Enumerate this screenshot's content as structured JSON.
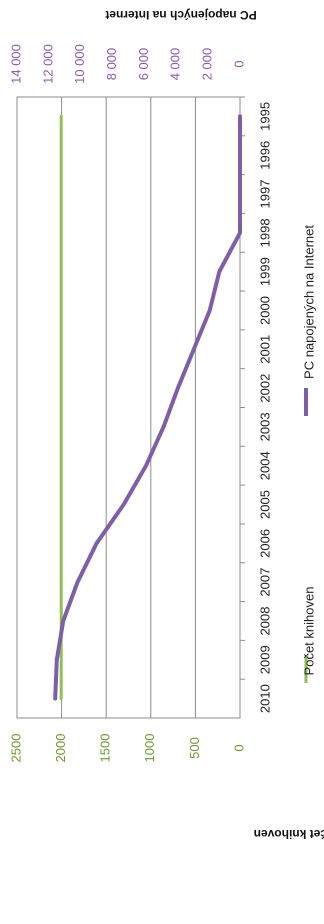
{
  "chart_data": {
    "type": "line",
    "orientation": "rotated 90 degrees clockwise",
    "categories": [
      "1995",
      "1996",
      "1997",
      "1998",
      "1999",
      "2000",
      "2001",
      "2002",
      "2003",
      "2004",
      "2005",
      "2006",
      "2007",
      "2008",
      "2009",
      "2010"
    ],
    "series": [
      {
        "name": "Počet knihoven",
        "axis": "left",
        "color": "#92c050",
        "values": [
          2005,
          2005,
          2005,
          2005,
          2005,
          2005,
          2005,
          2005,
          2005,
          2005,
          2005,
          2005,
          2005,
          2005,
          2005,
          2005
        ]
      },
      {
        "name": "PC napojených na Internet",
        "axis": "right",
        "color": "#7d5fa8",
        "values": [
          0,
          0,
          0,
          0,
          1300,
          1900,
          2900,
          3900,
          4800,
          5900,
          7300,
          9000,
          10200,
          11100,
          11500,
          11600
        ]
      }
    ],
    "left_axis": {
      "label": "Počet knihoven",
      "ylim": [
        0,
        2500
      ],
      "ticks": [
        "0",
        "500",
        "1000",
        "1500",
        "2000",
        "2500"
      ],
      "tick_color": "#6e9a2e"
    },
    "right_axis": {
      "label": "PC napojených na Internet",
      "ylim": [
        0,
        14000
      ],
      "ticks": [
        "0",
        "2 000",
        "4 000",
        "6 000",
        "8 000",
        "10 000",
        "12 000",
        "14 000"
      ],
      "tick_color": "#8a5cb5"
    },
    "grid": true,
    "legend_position": "bottom (rotated)"
  }
}
